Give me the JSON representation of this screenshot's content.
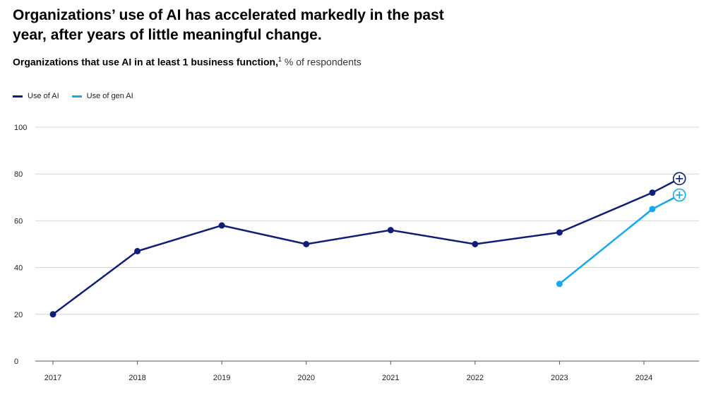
{
  "title": "Organizations’ use of AI has accelerated markedly in the past year, after years of little meaningful change.",
  "subtitle": {
    "main": "Organizations that use AI in at least 1 business function,",
    "footnote": "1",
    "unit": "% of respondents"
  },
  "chart_data": {
    "type": "line",
    "title": "Organizations that use AI in at least 1 business function",
    "ylabel": "% of respondents",
    "ylim": [
      0,
      100
    ],
    "yticks": [
      "0",
      "20",
      "40",
      "60",
      "80",
      "100"
    ],
    "xlim": [
      2017,
      2024.55
    ],
    "xticks": [
      "2017",
      "2018",
      "2019",
      "2020",
      "2021",
      "2022",
      "2023",
      "2024"
    ],
    "grid": true,
    "legend_position": "top-left",
    "series": [
      {
        "name": "Use of AI",
        "color": "#0f1e7a",
        "x": [
          2017,
          2018,
          2019,
          2020,
          2021,
          2022,
          2023,
          2024.1,
          2024.42
        ],
        "y": [
          20,
          47,
          58,
          50,
          56,
          50,
          55,
          72,
          78
        ]
      },
      {
        "name": "Use of gen AI",
        "color": "#12a9ef",
        "x": [
          2023,
          2024.1,
          2024.42
        ],
        "y": [
          33,
          65,
          71
        ]
      }
    ],
    "end_marker_icon": "plus-circle-icon"
  }
}
